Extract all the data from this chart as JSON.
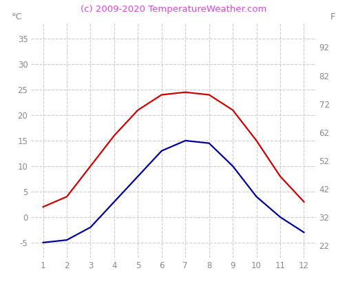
{
  "x": [
    1,
    2,
    3,
    4,
    5,
    6,
    7,
    8,
    9,
    10,
    11,
    12
  ],
  "red_line": [
    2,
    4,
    10,
    16,
    21,
    24,
    24.5,
    24,
    21,
    15,
    8,
    3
  ],
  "blue_line": [
    -5,
    -4.5,
    -2,
    3,
    8,
    13,
    15,
    14.5,
    10,
    4,
    0,
    -3
  ],
  "celsius_left_ticks": [
    -5,
    0,
    5,
    10,
    15,
    20,
    25,
    30,
    35
  ],
  "fahrenheit_right_ticks": [
    22,
    32,
    42,
    52,
    62,
    72,
    82,
    92
  ],
  "x_ticks": [
    1,
    2,
    3,
    4,
    5,
    6,
    7,
    8,
    9,
    10,
    11,
    12
  ],
  "ylim_celsius": [
    -8,
    38
  ],
  "xlim": [
    0.5,
    12.5
  ],
  "red_color": "#cc0000",
  "blue_color": "#000099",
  "grid_color": "#cccccc",
  "title": "(c) 2009-2020 TemperatureWeather.com",
  "title_color": "#dd44dd",
  "left_label": "°C",
  "right_label": "F",
  "label_color": "#888888",
  "tick_color": "#888888",
  "background_color": "#ffffff",
  "title_fontsize": 9.5,
  "axis_label_fontsize": 9.5,
  "tick_fontsize": 8.5,
  "line_width": 1.6
}
